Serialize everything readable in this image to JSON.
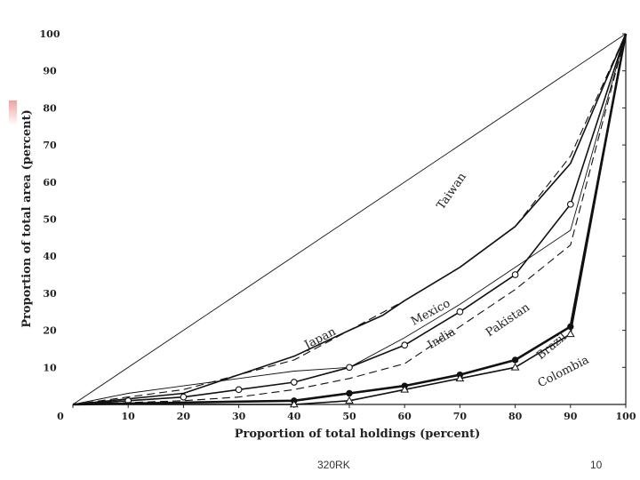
{
  "chart_data": {
    "type": "line",
    "title": "",
    "xlabel": "Proportion of total holdings (percent)",
    "ylabel": "Proportion of total area (percent)",
    "xlim": [
      0,
      100
    ],
    "ylim": [
      0,
      100
    ],
    "x_ticks": [
      0,
      10,
      20,
      30,
      40,
      50,
      60,
      70,
      80,
      90,
      100
    ],
    "y_ticks": [
      10,
      20,
      30,
      40,
      50,
      60,
      70,
      80,
      90,
      100
    ],
    "grid": false,
    "legend": "none",
    "series": [
      {
        "name": "Equality line",
        "style": "thin",
        "marker": "none",
        "x": [
          0,
          100
        ],
        "y": [
          0,
          100
        ]
      },
      {
        "name": "Taiwan",
        "style": "dashed",
        "marker": "none",
        "x": [
          0,
          20,
          40,
          50,
          60,
          70,
          80,
          90,
          100
        ],
        "y": [
          0,
          4,
          12,
          20,
          28,
          37,
          48,
          67,
          100
        ]
      },
      {
        "name": "Japan",
        "style": "medium",
        "marker": "none",
        "x": [
          0,
          20,
          30,
          40,
          50,
          56,
          60,
          70,
          80,
          90,
          100
        ],
        "y": [
          0,
          3,
          8,
          13,
          20,
          24,
          28,
          37,
          48,
          65,
          100
        ]
      },
      {
        "name": "Mexico",
        "style": "thin",
        "marker": "none",
        "x": [
          0,
          10,
          20,
          30,
          40,
          50,
          60,
          70,
          80,
          90,
          100
        ],
        "y": [
          0,
          3,
          5,
          7,
          9,
          10,
          18,
          27,
          37,
          47,
          100
        ]
      },
      {
        "name": "India",
        "style": "medium",
        "marker": "open-circle",
        "x": [
          0,
          10,
          20,
          30,
          40,
          50,
          60,
          70,
          80,
          90,
          100
        ],
        "y": [
          0,
          1,
          2,
          4,
          6,
          10,
          16,
          25,
          35,
          54,
          100
        ]
      },
      {
        "name": "Pakistan",
        "style": "dashed",
        "marker": "none",
        "x": [
          0,
          20,
          30,
          40,
          50,
          60,
          70,
          80,
          90,
          100
        ],
        "y": [
          0,
          1,
          2,
          4,
          7,
          11,
          21,
          31,
          43,
          100
        ]
      },
      {
        "name": "Brazil",
        "style": "thick",
        "marker": "filled-circle",
        "x": [
          0,
          40,
          50,
          60,
          70,
          80,
          90,
          100
        ],
        "y": [
          0,
          1,
          3,
          5,
          8,
          12,
          21,
          100
        ]
      },
      {
        "name": "Colombia",
        "style": "medium",
        "marker": "open-triangle",
        "x": [
          0,
          40,
          50,
          60,
          70,
          80,
          90,
          100
        ],
        "y": [
          0,
          0,
          1,
          4,
          7,
          10,
          19,
          100
        ]
      }
    ],
    "annotations": [
      {
        "text": "Taiwan",
        "x": 69,
        "y": 57,
        "angle": -55
      },
      {
        "text": "Japan",
        "x": 45,
        "y": 17,
        "angle": -27
      },
      {
        "text": "Mexico",
        "x": 65,
        "y": 24,
        "angle": -28
      },
      {
        "text": "India",
        "x": 67,
        "y": 17,
        "angle": -31
      },
      {
        "text": "Pakistan",
        "x": 79,
        "y": 22,
        "angle": -34
      },
      {
        "text": "Brazil",
        "x": 87,
        "y": 15,
        "angle": -40
      },
      {
        "text": "Colombia",
        "x": 89,
        "y": 8,
        "angle": -27
      }
    ]
  },
  "footer": {
    "left": "320RK",
    "right": "10"
  }
}
